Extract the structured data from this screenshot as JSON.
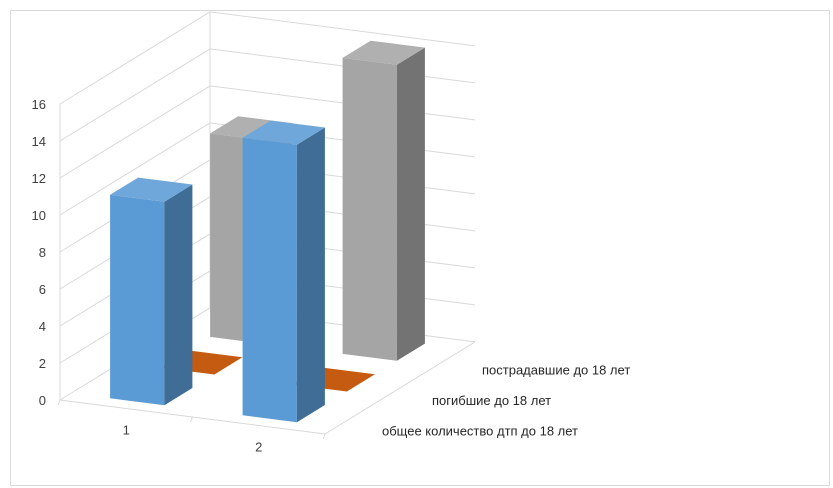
{
  "chart_data": {
    "type": "bar",
    "subtype": "3d-column",
    "title": "",
    "xlabel": "",
    "ylabel": "",
    "categories": [
      "1",
      "2"
    ],
    "ylim": [
      0,
      16
    ],
    "yticks": [
      "0",
      "2",
      "4",
      "6",
      "8",
      "10",
      "12",
      "14",
      "16"
    ],
    "grid": true,
    "legend": "none",
    "series": [
      {
        "name": "общее количество дтп до 18 лет",
        "values": [
          11,
          15
        ],
        "color": "#5b9bd5"
      },
      {
        "name": "погибшие до 18 лет",
        "values": [
          0,
          0
        ],
        "color": "#c55a11"
      },
      {
        "name": "пострадавшие до 18 лет",
        "values": [
          11,
          16
        ],
        "color": "#a5a5a5"
      }
    ]
  }
}
